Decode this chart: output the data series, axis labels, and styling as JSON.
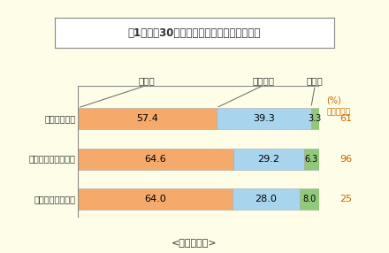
{
  "title": "問1　過去30日の間の、健康上の問題の有無",
  "subtitle": "<パネル調査>",
  "categories": [
    "殺人・傷害等",
    "交通事故による被害",
    "性犯罪による被害"
  ],
  "col_labels": [
    "あった",
    "なかった",
    "無回答"
  ],
  "values": [
    [
      57.4,
      39.3,
      3.3
    ],
    [
      64.6,
      29.2,
      6.3
    ],
    [
      64.0,
      28.0,
      8.0
    ]
  ],
  "sample_sizes": [
    61,
    96,
    25
  ],
  "bar_colors": [
    "#F5A96A",
    "#A8D4EE",
    "#90C97A"
  ],
  "background_color": "#FDFDE8",
  "title_box_bg": "#FFFFFF",
  "title_box_edge": "#888888",
  "text_color": "#333333",
  "orange_text": "#CC6600",
  "axis_label_pct": "(%)",
  "axis_label_sample": "サンプル数",
  "bar_edge_color": "#AAAAAA",
  "leader_line_color": "#666666"
}
